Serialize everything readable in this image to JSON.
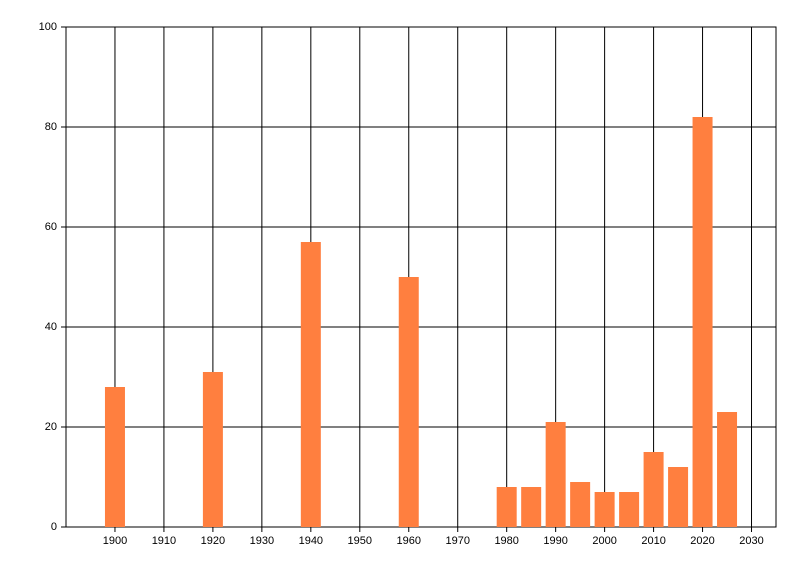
{
  "chart_data": {
    "type": "bar",
    "x": [
      1900,
      1920,
      1940,
      1960,
      1980,
      1985,
      1990,
      1995,
      2000,
      2005,
      2010,
      2015,
      2020,
      2025
    ],
    "values": [
      28,
      31,
      57,
      50,
      8,
      8,
      21,
      9,
      7,
      7,
      15,
      12,
      82,
      23
    ],
    "color": "#ff7f3f",
    "xlim": [
      1890,
      2035
    ],
    "xticks": [
      1900,
      1910,
      1920,
      1930,
      1940,
      1950,
      1960,
      1970,
      1980,
      1990,
      2000,
      2010,
      2020,
      2030
    ],
    "ylim": [
      0,
      100
    ],
    "yticks": [
      0,
      20,
      40,
      60,
      80,
      100
    ],
    "grid": true
  }
}
